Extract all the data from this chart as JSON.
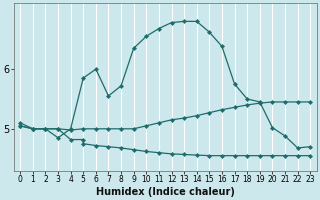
{
  "xlabel": "Humidex (Indice chaleur)",
  "bg_color": "#cce8ec",
  "grid_color": "#ffffff",
  "line_color": "#1e6b6b",
  "xlim": [
    -0.5,
    23.5
  ],
  "ylim": [
    4.3,
    7.1
  ],
  "yticks": [
    5,
    6
  ],
  "xtick_labels": [
    "0",
    "1",
    "2",
    "3",
    "4",
    "5",
    "6",
    "7",
    "8",
    "9",
    "10",
    "11",
    "12",
    "13",
    "14",
    "15",
    "16",
    "17",
    "18",
    "19",
    "20",
    "21",
    "22",
    "23"
  ],
  "series": [
    {
      "x": [
        0,
        1,
        2,
        3,
        4,
        5,
        6,
        7,
        8,
        9,
        10,
        11,
        12,
        13,
        14,
        15,
        16,
        17,
        18,
        19,
        20,
        21,
        22,
        23
      ],
      "y": [
        5.1,
        5.0,
        5.0,
        4.85,
        5.0,
        5.85,
        6.0,
        5.55,
        5.72,
        6.35,
        6.55,
        6.68,
        6.78,
        6.8,
        6.8,
        6.62,
        6.38,
        5.75,
        5.5,
        5.45,
        5.02,
        4.88,
        4.68,
        4.7
      ]
    },
    {
      "x": [
        0,
        1,
        2,
        3,
        4,
        5,
        6,
        7,
        8,
        9,
        10,
        11,
        12,
        13,
        14,
        15,
        16,
        17,
        18,
        19,
        20,
        21,
        22,
        23
      ],
      "y": [
        5.05,
        5.0,
        5.0,
        5.0,
        4.98,
        5.0,
        5.0,
        5.0,
        5.0,
        5.0,
        5.05,
        5.1,
        5.15,
        5.18,
        5.22,
        5.27,
        5.32,
        5.36,
        5.4,
        5.43,
        5.45,
        5.45,
        5.45,
        5.45
      ]
    },
    {
      "x": [
        0,
        1,
        2,
        3,
        4,
        5,
        5,
        6,
        7,
        8,
        9,
        10,
        11,
        12,
        13,
        14,
        15,
        16,
        17,
        18,
        19,
        20,
        21,
        22,
        23
      ],
      "y": [
        5.05,
        5.0,
        5.0,
        5.0,
        4.82,
        4.82,
        4.75,
        4.72,
        4.7,
        4.68,
        4.65,
        4.62,
        4.6,
        4.58,
        4.57,
        4.56,
        4.55,
        4.55,
        4.55,
        4.55,
        4.55,
        4.55,
        4.55,
        4.55,
        4.55
      ]
    }
  ]
}
